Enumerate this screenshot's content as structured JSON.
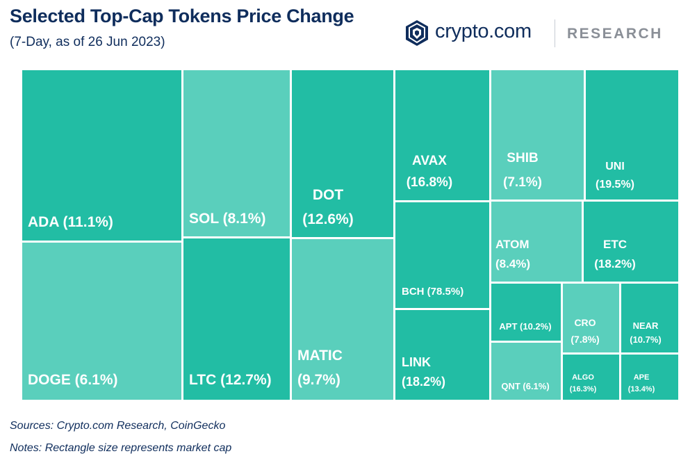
{
  "header": {
    "title": "Selected Top-Cap Tokens Price Change",
    "subtitle": "(7-Day, as of 26 Jun 2023)"
  },
  "brand": {
    "logo_icon": "crypto-com-lion-shield-icon",
    "name": "crypto.com",
    "section": "RESEARCH"
  },
  "footer": {
    "sources": "Sources: Crypto.com Research, CoinGecko",
    "notes": "Notes: Rectangle size represents market cap"
  },
  "colors": {
    "dark_teal": "#22bda4",
    "light_teal": "#5acfbc",
    "navy": "#0f2d5c"
  },
  "chart_data": {
    "type": "treemap",
    "title": "Selected Top-Cap Tokens Price Change",
    "subtitle": "(7-Day, as of 26 Jun 2023)",
    "note": "Rectangle size represents market cap",
    "items": [
      {
        "name": "ADA",
        "change_pct": 11.1,
        "label": "ADA (11.1%)"
      },
      {
        "name": "DOGE",
        "change_pct": 6.1,
        "label": "DOGE (6.1%)"
      },
      {
        "name": "SOL",
        "change_pct": 8.1,
        "label": "SOL (8.1%)"
      },
      {
        "name": "LTC",
        "change_pct": 12.7,
        "label": "LTC (12.7%)"
      },
      {
        "name": "DOT",
        "change_pct": 12.6,
        "label": "(12.6%)"
      },
      {
        "name": "MATIC",
        "change_pct": 9.7,
        "label": "(9.7%)"
      },
      {
        "name": "AVAX",
        "change_pct": 16.8,
        "label": "(16.8%)"
      },
      {
        "name": "BCH",
        "change_pct": 78.5,
        "label": "BCH (78.5%)"
      },
      {
        "name": "LINK",
        "change_pct": 18.2,
        "label": "(18.2%)"
      },
      {
        "name": "SHIB",
        "change_pct": 7.1,
        "label": "(7.1%)"
      },
      {
        "name": "UNI",
        "change_pct": 19.5,
        "label": "(19.5%)"
      },
      {
        "name": "ATOM",
        "change_pct": 8.4,
        "label": "(8.4%)"
      },
      {
        "name": "ETC",
        "change_pct": 18.2,
        "label": "(18.2%)"
      },
      {
        "name": "APT",
        "change_pct": 10.2,
        "label": "APT (10.2%)"
      },
      {
        "name": "QNT",
        "change_pct": 6.1,
        "label": "QNT (6.1%)"
      },
      {
        "name": "CRO",
        "change_pct": 7.8,
        "label": "(7.8%)"
      },
      {
        "name": "NEAR",
        "change_pct": 10.7,
        "label": "(10.7%)"
      },
      {
        "name": "ALGO",
        "change_pct": 16.3,
        "label": "(16.3%)"
      },
      {
        "name": "APE",
        "change_pct": 13.4,
        "label": "(13.4%)"
      }
    ]
  }
}
